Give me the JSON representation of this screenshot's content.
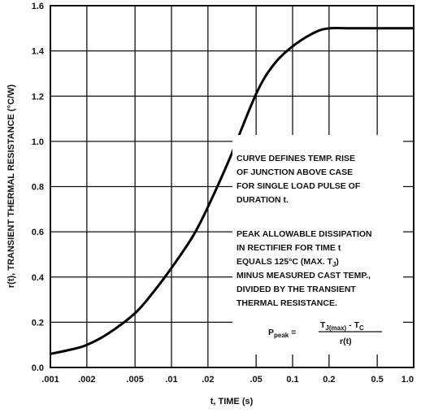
{
  "chart_data": {
    "type": "line",
    "title": "",
    "xlabel": "t, TIME (s)",
    "ylabel": "r(t), TRANSIENT THERMAL RESISTANCE (°C/W)",
    "x_scale": "log",
    "xlim": [
      0.001,
      1.0
    ],
    "ylim": [
      0.0,
      1.6
    ],
    "grid": true,
    "x_ticks": [
      0.001,
      0.002,
      0.005,
      0.01,
      0.02,
      0.05,
      0.1,
      0.2,
      0.5,
      1.0
    ],
    "x_tick_labels": [
      ".001",
      ".002",
      ".005",
      ".01",
      ".02",
      ".05",
      "0.1",
      "0.2",
      "0.5",
      "1.0"
    ],
    "y_ticks": [
      0.0,
      0.2,
      0.4,
      0.6,
      0.8,
      1.0,
      1.2,
      1.4,
      1.6
    ],
    "y_tick_labels": [
      "0.0",
      "0.2",
      "0.4",
      "0.6",
      "0.8",
      "1.0",
      "1.2",
      "1.4",
      "1.6"
    ],
    "series": [
      {
        "x": [
          0.001,
          0.0015,
          0.002,
          0.003,
          0.005,
          0.007,
          0.01,
          0.015,
          0.02,
          0.03,
          0.05,
          0.07,
          0.1,
          0.15,
          0.2,
          0.3,
          0.5,
          1.0
        ],
        "y": [
          0.06,
          0.08,
          0.1,
          0.15,
          0.24,
          0.33,
          0.44,
          0.58,
          0.71,
          0.92,
          1.21,
          1.34,
          1.42,
          1.48,
          1.5,
          1.5,
          1.5,
          1.5
        ]
      }
    ],
    "annotations": {
      "paragraph1": [
        "CURVE DEFINES TEMP. RISE",
        "OF JUNCTION ABOVE CASE",
        "FOR SINGLE LOAD PULSE OF",
        "DURATION t."
      ],
      "paragraph2": [
        "PEAK ALLOWABLE DISSIPATION",
        "IN RECTIFIER FOR TIME t",
        "EQUALS 125°C (MAX. T",
        "MINUS MEASURED CAST TEMP.,",
        "DIVIDED BY THE TRANSIENT",
        "THERMAL RESISTANCE."
      ],
      "paragraph2_line3_subscript": "J",
      "paragraph2_line3_end": ")",
      "formula": {
        "lhs": "P",
        "lhs_sub": "peak",
        "eq": " = ",
        "numerator_a": "T",
        "numerator_a_sub": "J(max)",
        "numerator_op": " - ",
        "numerator_b": "T",
        "numerator_b_sub": "C",
        "denominator": "r(t)"
      }
    }
  }
}
